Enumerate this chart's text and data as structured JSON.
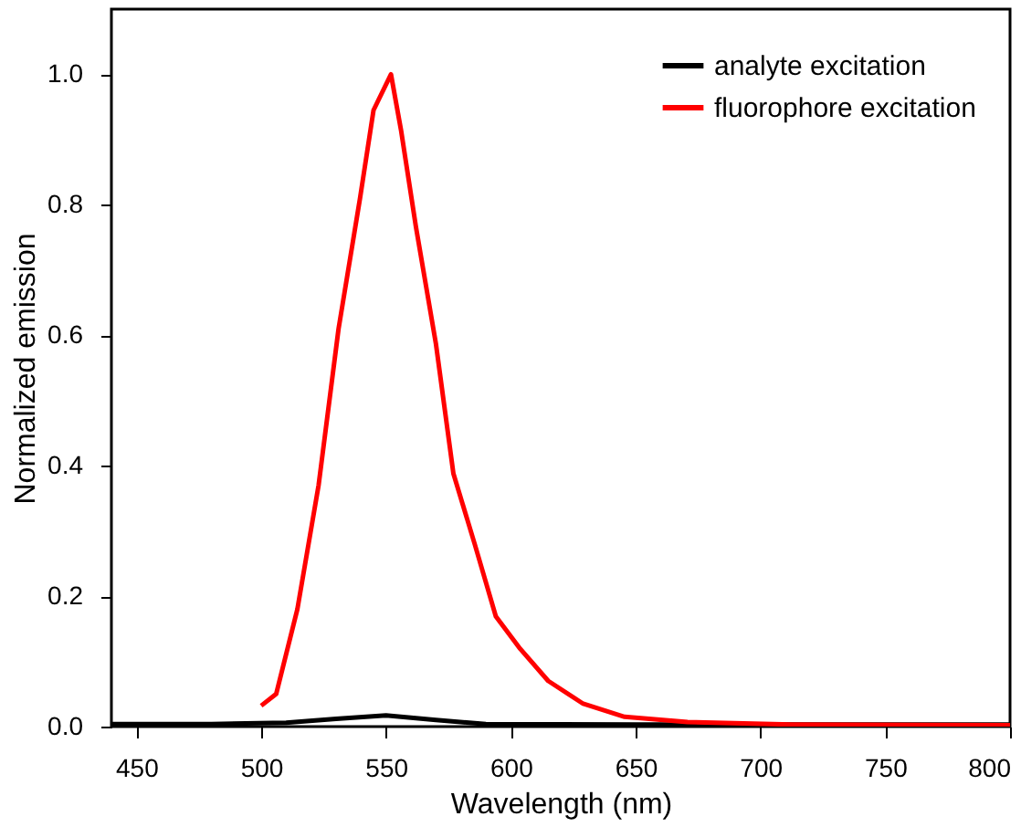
{
  "chart_data": {
    "type": "line",
    "xlabel": "Wavelength (nm)",
    "ylabel": "Normalized emission",
    "xlim": [
      440,
      800
    ],
    "xticks": [
      450,
      500,
      550,
      600,
      650,
      700,
      750,
      800
    ],
    "ylim": [
      0,
      1.1
    ],
    "yticks": [
      {
        "value": 0,
        "label": "0.0"
      },
      0.2,
      0.4,
      0.6,
      0.8,
      {
        "value": 1,
        "label": "1.0"
      }
    ],
    "grid": false,
    "legend": "top right",
    "line_style": "solid",
    "marker": "none",
    "series": [
      {
        "name": "analyte excitation",
        "color": "#000000",
        "x": [
          440,
          480,
          510,
          530,
          550,
          570,
          590,
          650,
          800
        ],
        "values": [
          0.004,
          0.004,
          0.006,
          0.012,
          0.017,
          0.01,
          0.004,
          0.003,
          0.003
        ]
      },
      {
        "name": "fluorophore excitation",
        "color": "#ff0000",
        "x": [
          500,
          506,
          514.5,
          523,
          531,
          539.6,
          545,
          552,
          556,
          562,
          570,
          577,
          585.6,
          594,
          603.8,
          615,
          629,
          645.6,
          670.8,
          712.6,
          800
        ],
        "values": [
          0.032,
          0.05,
          0.18,
          0.37,
          0.61,
          0.81,
          0.945,
          1.0,
          0.915,
          0.766,
          0.587,
          0.388,
          0.279,
          0.169,
          0.119,
          0.07,
          0.035,
          0.015,
          0.007,
          0.003,
          0.002
        ]
      }
    ]
  }
}
